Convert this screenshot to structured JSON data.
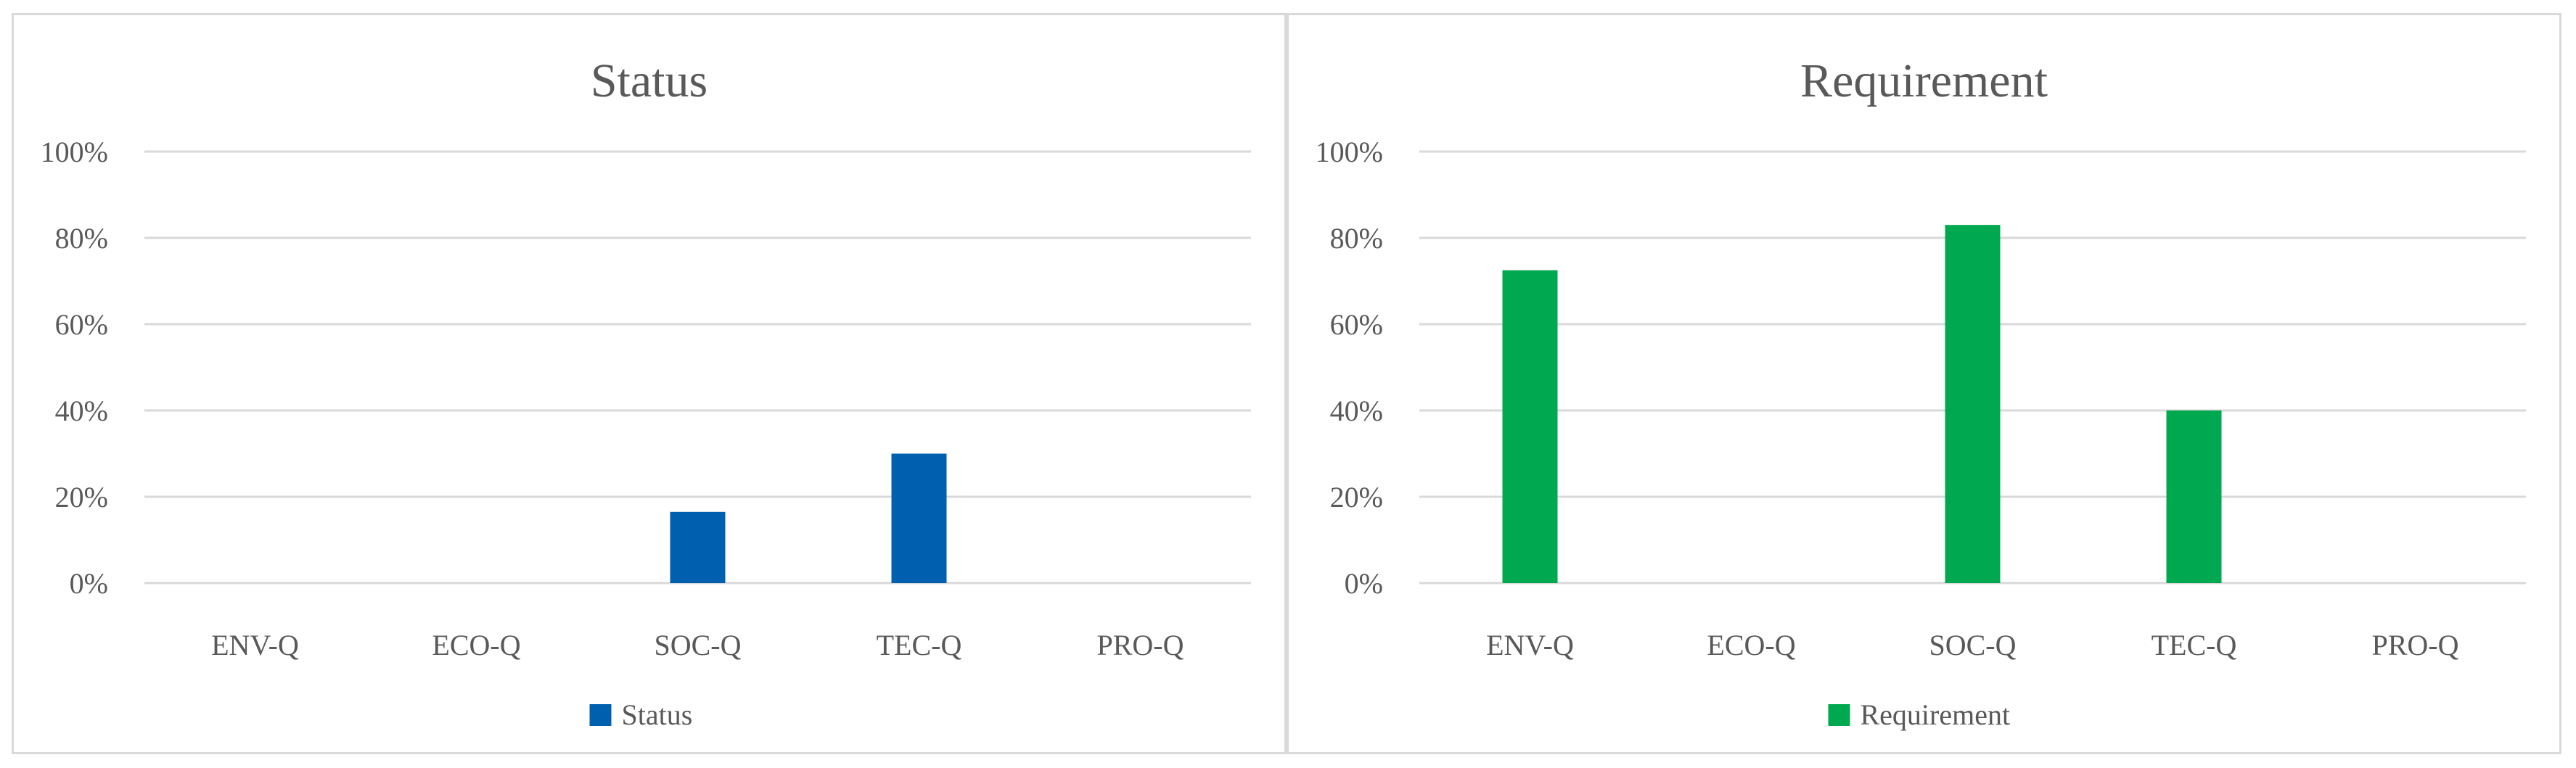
{
  "chart_data": [
    {
      "type": "bar",
      "title": "Status",
      "categories": [
        "ENV-Q",
        "ECO-Q",
        "SOC-Q",
        "TEC-Q",
        "PRO-Q"
      ],
      "series": [
        {
          "name": "Status",
          "values": [
            0,
            0,
            16.5,
            30,
            0
          ],
          "color": "#0060b0"
        }
      ],
      "ylim": [
        0,
        100
      ],
      "yticks": [
        "0%",
        "20%",
        "40%",
        "60%",
        "80%",
        "100%"
      ],
      "grid": true,
      "legend": "bottom"
    },
    {
      "type": "bar",
      "title": "Requirement",
      "categories": [
        "ENV-Q",
        "ECO-Q",
        "SOC-Q",
        "TEC-Q",
        "PRO-Q"
      ],
      "series": [
        {
          "name": "Requirement",
          "values": [
            72.5,
            0,
            83,
            40,
            0
          ],
          "color": "#00a84f"
        }
      ],
      "ylim": [
        0,
        100
      ],
      "yticks": [
        "0%",
        "20%",
        "40%",
        "60%",
        "80%",
        "100%"
      ],
      "grid": true,
      "legend": "bottom"
    }
  ]
}
